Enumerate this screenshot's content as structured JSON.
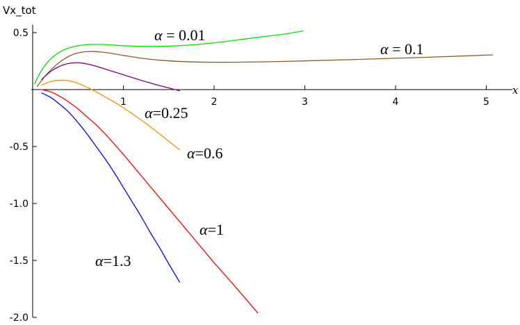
{
  "chart_data": {
    "type": "line",
    "title": "",
    "xlabel": "x",
    "ylabel": "Vx_tot",
    "xlim": [
      0,
      5.25
    ],
    "ylim": [
      -2.0,
      0.6
    ],
    "x_ticks": [
      1,
      2,
      3,
      4,
      5
    ],
    "x_tick_labels": [
      "1",
      "2",
      "3",
      "4",
      "5"
    ],
    "y_ticks": [
      0.5,
      -0.5,
      -1.0,
      -1.5,
      -2.0
    ],
    "y_tick_labels": [
      "0.5",
      "-0.5",
      "-1.0",
      "-1.5",
      "-2.0"
    ],
    "grid": false,
    "legend": "none",
    "series": [
      {
        "name": "α = 0.01",
        "label_text": "α = 0.01",
        "color": "#00e000",
        "x": [
          0.02,
          0.1,
          0.2,
          0.3,
          0.4,
          0.5,
          0.6,
          0.7,
          0.8,
          0.9,
          1.0,
          1.2,
          1.4,
          1.6,
          1.8,
          2.0,
          2.2,
          2.4,
          2.6,
          2.8,
          2.98
        ],
        "y": [
          0.05,
          0.17,
          0.27,
          0.33,
          0.365,
          0.385,
          0.395,
          0.397,
          0.395,
          0.39,
          0.385,
          0.38,
          0.38,
          0.385,
          0.395,
          0.41,
          0.43,
          0.45,
          0.47,
          0.49,
          0.515
        ]
      },
      {
        "name": "α = 0.1",
        "label_text": "α = 0.1",
        "color": "#8b5a2b",
        "x": [
          0.05,
          0.15,
          0.25,
          0.35,
          0.45,
          0.55,
          0.65,
          0.75,
          0.85,
          1.0,
          1.2,
          1.4,
          1.6,
          1.8,
          2.0,
          2.2,
          2.5,
          3.0,
          3.5,
          4.0,
          4.5,
          5.07
        ],
        "y": [
          0.03,
          0.13,
          0.21,
          0.27,
          0.31,
          0.33,
          0.335,
          0.33,
          0.32,
          0.3,
          0.275,
          0.258,
          0.248,
          0.242,
          0.24,
          0.24,
          0.243,
          0.252,
          0.263,
          0.275,
          0.288,
          0.305
        ]
      },
      {
        "name": "α=0.25",
        "label_text": "α=0.25",
        "color": "#800080",
        "x": [
          0.1,
          0.2,
          0.3,
          0.4,
          0.5,
          0.6,
          0.7,
          0.8,
          0.9,
          1.0,
          1.2,
          1.4,
          1.62
        ],
        "y": [
          0.09,
          0.16,
          0.205,
          0.23,
          0.235,
          0.225,
          0.205,
          0.18,
          0.155,
          0.13,
          0.08,
          0.035,
          -0.01
        ]
      },
      {
        "name": "α=0.6",
        "label_text": "α=0.6",
        "color": "#ff8c00",
        "x": [
          0.1,
          0.2,
          0.3,
          0.4,
          0.5,
          0.6,
          0.7,
          0.8,
          0.9,
          1.0,
          1.2,
          1.4,
          1.62
        ],
        "y": [
          0.04,
          0.07,
          0.082,
          0.078,
          0.055,
          0.02,
          -0.02,
          -0.065,
          -0.11,
          -0.16,
          -0.27,
          -0.39,
          -0.53
        ]
      },
      {
        "name": "α=1",
        "label_text": "α=1",
        "color": "#ff0000",
        "x": [
          0.1,
          0.2,
          0.3,
          0.4,
          0.5,
          0.6,
          0.7,
          0.8,
          1.0,
          1.2,
          1.4,
          1.6,
          1.8,
          2.0,
          2.2,
          2.48
        ],
        "y": [
          0.0,
          -0.02,
          -0.06,
          -0.11,
          -0.17,
          -0.24,
          -0.31,
          -0.39,
          -0.57,
          -0.76,
          -0.95,
          -1.14,
          -1.33,
          -1.52,
          -1.7,
          -1.96
        ]
      },
      {
        "name": "α=1.3",
        "label_text": "α=1.3",
        "color": "#0000ff",
        "x": [
          0.1,
          0.2,
          0.3,
          0.4,
          0.5,
          0.6,
          0.7,
          0.8,
          0.9,
          1.0,
          1.1,
          1.2,
          1.3,
          1.4,
          1.5,
          1.62
        ],
        "y": [
          -0.03,
          -0.07,
          -0.13,
          -0.2,
          -0.29,
          -0.39,
          -0.5,
          -0.61,
          -0.73,
          -0.86,
          -0.99,
          -1.12,
          -1.26,
          -1.39,
          -1.53,
          -1.69
        ]
      }
    ]
  }
}
